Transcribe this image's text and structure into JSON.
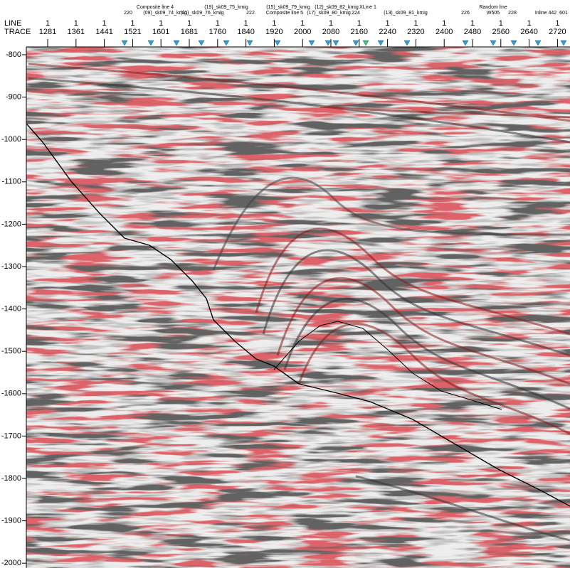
{
  "header": {
    "row_labels": [
      "LINE",
      "TRACE"
    ],
    "columns": [
      {
        "line": "1",
        "trace": "1281"
      },
      {
        "line": "1",
        "trace": "1361"
      },
      {
        "line": "1",
        "trace": "1441"
      },
      {
        "line": "1",
        "trace": "1521"
      },
      {
        "line": "1",
        "trace": "1601"
      },
      {
        "line": "1",
        "trace": "1681"
      },
      {
        "line": "1",
        "trace": "1760"
      },
      {
        "line": "1",
        "trace": "1840"
      },
      {
        "line": "1",
        "trace": "1920"
      },
      {
        "line": "1",
        "trace": "2000"
      },
      {
        "line": "1",
        "trace": "2080"
      },
      {
        "line": "1",
        "trace": "2160"
      },
      {
        "line": "1",
        "trace": "2240"
      },
      {
        "line": "1",
        "trace": "2320"
      },
      {
        "line": "1",
        "trace": "2400"
      },
      {
        "line": "1",
        "trace": "2480"
      },
      {
        "line": "1",
        "trace": "2560"
      },
      {
        "line": "1",
        "trace": "2640"
      },
      {
        "line": "1",
        "trace": "2720"
      }
    ],
    "intersections": [
      "Composite line 4",
      "220",
      "(09)_sk09_74_kmig",
      "(11)_sk09_76_kmig",
      "(19)_sk09_75_kmig",
      "222",
      "(15)_sk09_79_kmig",
      "Composite line 5",
      "(12)_sk09_82_kmig",
      "XLine 1",
      "(17)_sk09_80_kmig",
      "224",
      "(13)_sk09_81_kmig",
      "226",
      "Random line",
      "W505",
      "228",
      "Inline 442",
      "601"
    ]
  },
  "time_axis": {
    "ticks": [
      -800,
      -900,
      -1000,
      -1100,
      -1200,
      -1300,
      -1400,
      -1500,
      -1600,
      -1700,
      -1800,
      -1900,
      -2000
    ]
  }
}
